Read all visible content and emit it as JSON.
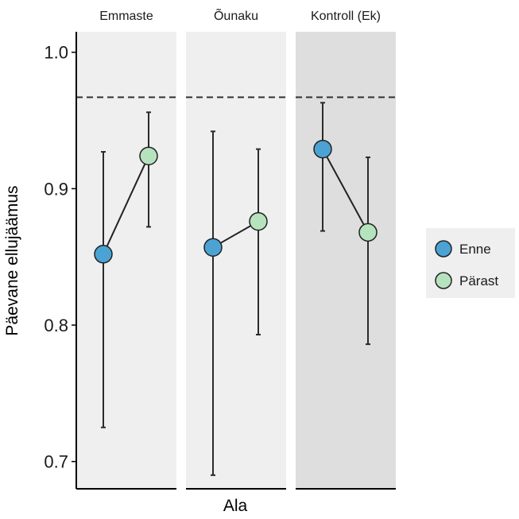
{
  "chart_data": {
    "type": "scatter",
    "xlabel": "Ala",
    "ylabel": "Päevane ellujäämus",
    "ylim": [
      0.68,
      1.015
    ],
    "yticks": [
      0.7,
      0.8,
      0.9,
      1.0
    ],
    "ytick_labels": [
      "0.7",
      "0.8",
      "0.9",
      "1.0"
    ],
    "reference_line": 0.967,
    "legend": {
      "placement": "right",
      "entries": [
        {
          "name": "Enne",
          "color": "#4ba3d3"
        },
        {
          "name": "Pärast",
          "color": "#b5e3bd"
        }
      ]
    },
    "facets": [
      {
        "label": "Emmaste",
        "background": "#efefef",
        "points": [
          {
            "group": "Enne",
            "value": 0.852,
            "lower": 0.725,
            "upper": 0.927
          },
          {
            "group": "Pärast",
            "value": 0.924,
            "lower": 0.872,
            "upper": 0.956
          }
        ]
      },
      {
        "label": "Õunaku",
        "background": "#efefef",
        "points": [
          {
            "group": "Enne",
            "value": 0.857,
            "lower": 0.69,
            "upper": 0.942
          },
          {
            "group": "Pärast",
            "value": 0.876,
            "lower": 0.793,
            "upper": 0.929
          }
        ]
      },
      {
        "label": "Kontroll (Ek)",
        "background": "#dedede",
        "points": [
          {
            "group": "Enne",
            "value": 0.929,
            "lower": 0.869,
            "upper": 0.963
          },
          {
            "group": "Pärast",
            "value": 0.868,
            "lower": 0.786,
            "upper": 0.923
          }
        ]
      }
    ]
  }
}
